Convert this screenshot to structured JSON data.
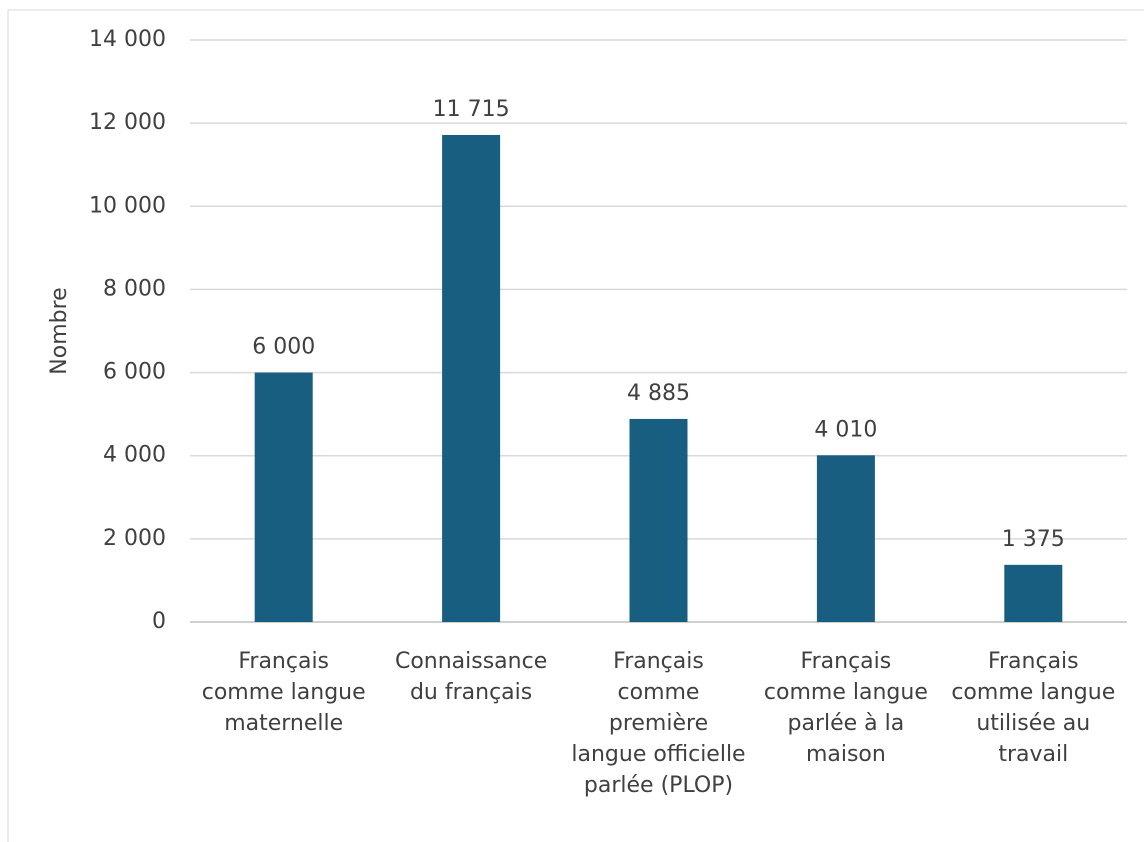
{
  "chart_data": {
    "type": "bar",
    "y_axis_label": "Nombre",
    "categories": [
      "Français comme langue maternelle",
      "Connaissance du français",
      "Français comme première langue officielle parlée (PLOP)",
      "Français comme langue parlée à la maison",
      "Français comme langue utilisée au travail"
    ],
    "values": [
      6000,
      11715,
      4885,
      4010,
      1375
    ],
    "value_labels": [
      "6 000",
      "11 715",
      "4 885",
      "4 010",
      "1 375"
    ],
    "color": "#175e80",
    "ylim": [
      0,
      14000
    ],
    "yticks": [
      0,
      {
        "value": 2000,
        "label": "2 000"
      },
      {
        "value": 4000,
        "label": "4 000"
      },
      {
        "value": 6000,
        "label": "6 000"
      },
      {
        "value": 8000,
        "label": "8 000"
      },
      {
        "value": 10000,
        "label": "10 000"
      },
      {
        "value": 12000,
        "label": "12 000"
      },
      {
        "value": 14000,
        "label": "14 000"
      }
    ],
    "grid": true
  }
}
